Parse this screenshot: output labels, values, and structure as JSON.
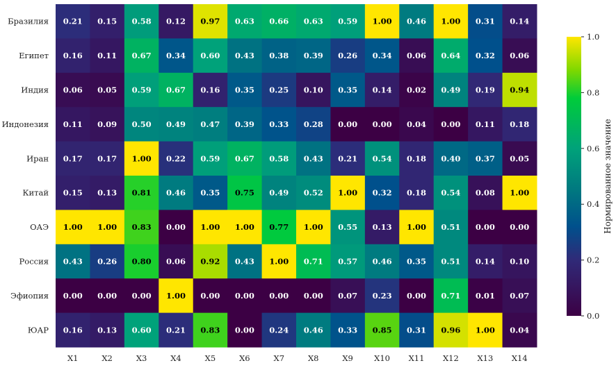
{
  "chart_data": {
    "type": "heatmap",
    "title": "",
    "xlabel": "",
    "ylabel": "",
    "rows": [
      "Бразилия",
      "Египет",
      "Индия",
      "Индонезия",
      "Иран",
      "Китай",
      "ОАЭ",
      "Россия",
      "Эфиопия",
      "ЮАР"
    ],
    "columns": [
      "X1",
      "X2",
      "X3",
      "X4",
      "X5",
      "X6",
      "X7",
      "X8",
      "X9",
      "X10",
      "X11",
      "X12",
      "X13",
      "X14"
    ],
    "values": [
      [
        0.21,
        0.15,
        0.58,
        0.12,
        0.97,
        0.63,
        0.66,
        0.63,
        0.59,
        1.0,
        0.46,
        1.0,
        0.31,
        0.14
      ],
      [
        0.16,
        0.11,
        0.67,
        0.34,
        0.6,
        0.43,
        0.38,
        0.39,
        0.26,
        0.34,
        0.06,
        0.64,
        0.32,
        0.06
      ],
      [
        0.06,
        0.05,
        0.59,
        0.67,
        0.16,
        0.35,
        0.25,
        0.1,
        0.35,
        0.14,
        0.02,
        0.49,
        0.19,
        0.94
      ],
      [
        0.11,
        0.09,
        0.5,
        0.49,
        0.47,
        0.39,
        0.33,
        0.28,
        0.0,
        0.0,
        0.04,
        0.0,
        0.11,
        0.18
      ],
      [
        0.17,
        0.17,
        1.0,
        0.22,
        0.59,
        0.67,
        0.58,
        0.43,
        0.21,
        0.54,
        0.18,
        0.4,
        0.37,
        0.05
      ],
      [
        0.15,
        0.13,
        0.81,
        0.46,
        0.35,
        0.75,
        0.49,
        0.52,
        1.0,
        0.32,
        0.18,
        0.54,
        0.08,
        1.0
      ],
      [
        1.0,
        1.0,
        0.83,
        0.0,
        1.0,
        1.0,
        0.77,
        1.0,
        0.55,
        0.13,
        1.0,
        0.51,
        0.0,
        0.0
      ],
      [
        0.43,
        0.26,
        0.8,
        0.06,
        0.92,
        0.43,
        1.0,
        0.71,
        0.57,
        0.46,
        0.35,
        0.51,
        0.14,
        0.1
      ],
      [
        0.0,
        0.0,
        0.0,
        1.0,
        0.0,
        0.0,
        0.0,
        0.0,
        0.07,
        0.23,
        0.0,
        0.71,
        0.01,
        0.07
      ],
      [
        0.16,
        0.13,
        0.6,
        0.21,
        0.83,
        0.0,
        0.24,
        0.46,
        0.33,
        0.85,
        0.31,
        0.96,
        1.0,
        0.04
      ]
    ],
    "value_format": "0.00",
    "colorbar": {
      "label": "Нормированное значение",
      "range": [
        0.0,
        1.0
      ],
      "ticks": [
        "0.0",
        "0.2",
        "0.4",
        "0.6",
        "0.8",
        "1.0"
      ],
      "colormap": [
        {
          "stop": 0.0,
          "color": "#3c0044"
        },
        {
          "stop": 0.2,
          "color": "#302a78"
        },
        {
          "stop": 0.32,
          "color": "#00508c"
        },
        {
          "stop": 0.45,
          "color": "#007880"
        },
        {
          "stop": 0.6,
          "color": "#00a27a"
        },
        {
          "stop": 0.78,
          "color": "#00cc3a"
        },
        {
          "stop": 0.88,
          "color": "#7ed800"
        },
        {
          "stop": 1.0,
          "color": "#ffe600"
        }
      ]
    },
    "grid": false,
    "legend": "right"
  }
}
